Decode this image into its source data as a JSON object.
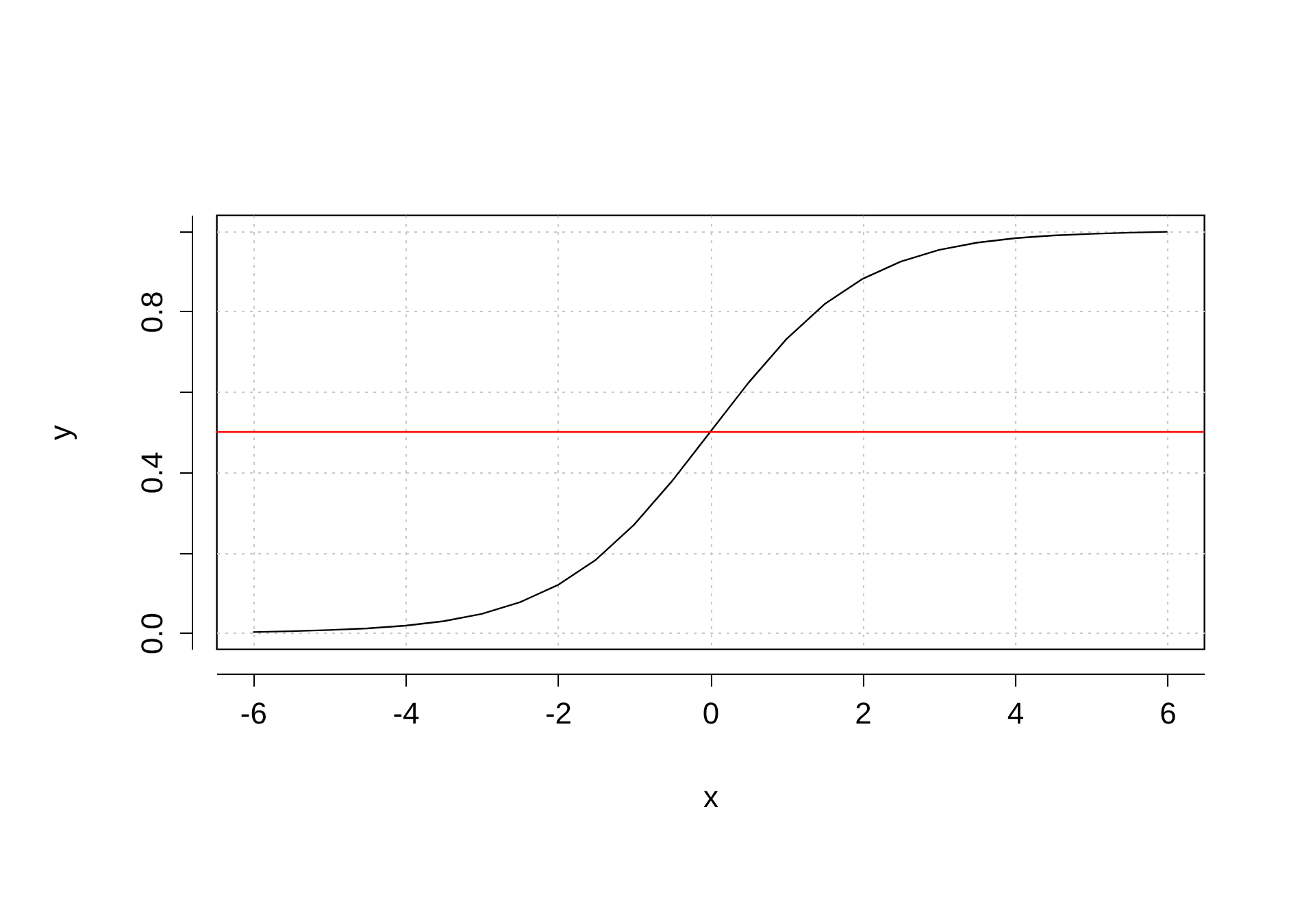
{
  "chart_data": {
    "type": "line",
    "xlabel": "x",
    "ylabel": "y",
    "x": [
      -6,
      -5.5,
      -5,
      -4.5,
      -4,
      -3.5,
      -3,
      -2.5,
      -2,
      -1.5,
      -1,
      -0.5,
      0,
      0.5,
      1,
      1.5,
      2,
      2.5,
      3,
      3.5,
      4,
      4.5,
      5,
      5.5,
      6
    ],
    "series": [
      {
        "color": "#000000",
        "values": [
          0.002,
          0.004,
          0.007,
          0.011,
          0.018,
          0.029,
          0.047,
          0.076,
          0.119,
          0.182,
          0.269,
          0.378,
          0.5,
          0.622,
          0.731,
          0.818,
          0.881,
          0.924,
          0.953,
          0.971,
          0.982,
          0.989,
          0.993,
          0.996,
          0.998
        ]
      }
    ],
    "xlim": [
      -6.48,
      6.48
    ],
    "xticks": [
      -6,
      -4,
      -2,
      0,
      2,
      4,
      6
    ],
    "ylim": [
      -0.04,
      1.04
    ],
    "yticks": [
      {
        "value": 0,
        "label": "0.0"
      },
      {
        "value": 0.2,
        "label": null
      },
      0.4,
      {
        "value": 0.6,
        "label": null
      },
      0.8,
      {
        "value": 1.0,
        "label": null
      }
    ],
    "grid": true,
    "ref_lines": [
      {
        "axis": "y",
        "value": 0.5,
        "color": "#ff0000"
      }
    ]
  }
}
